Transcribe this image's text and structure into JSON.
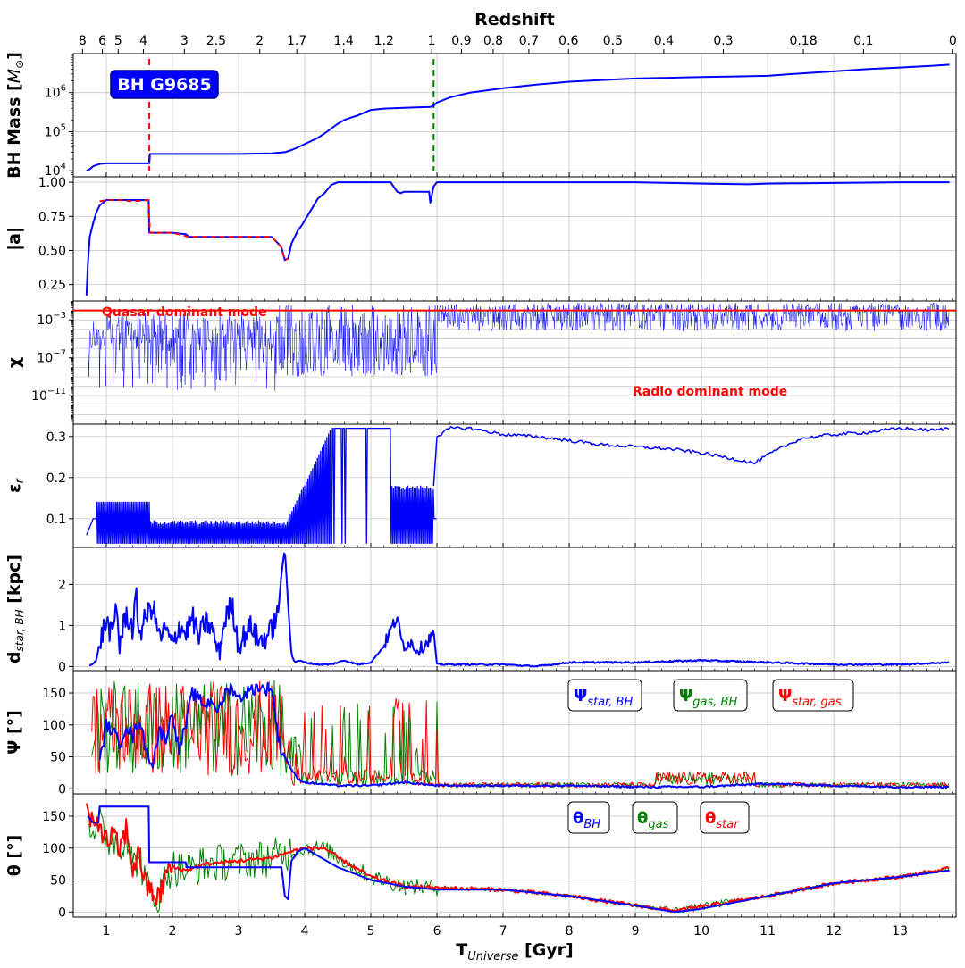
{
  "figure": {
    "top_title": "Redshift",
    "x_title": "T",
    "x_title_sub": "Universe",
    "x_title_unit": " [Gyr]",
    "colors": {
      "blue": "#0000ff",
      "red": "#ff0000",
      "green": "#008000",
      "dark_green": "#008000",
      "black": "#000000"
    }
  },
  "chart_data": [
    {
      "type": "line",
      "ylabel": "BH Mass [",
      "ylabel_math": "M",
      "ylabel_sub": "⊙",
      "ylabel_end": "]",
      "yscale": "log",
      "ylim": [
        7000,
        10000000
      ],
      "ytick_values": [
        10000,
        100000,
        1000000
      ],
      "ytick_bases": [
        "10",
        "10",
        "10"
      ],
      "ytick_exps": [
        "4",
        "5",
        "6"
      ],
      "annotation_box": "BH G9685",
      "vlines": [
        {
          "x": 1.65,
          "color": "#ff0000",
          "style": "dashed"
        },
        {
          "x": 5.95,
          "color": "#008000",
          "style": "dashed"
        }
      ],
      "series": [
        {
          "color": "#0000ff",
          "x": [
            0.7,
            0.75,
            0.8,
            0.9,
            1.0,
            1.2,
            1.4,
            1.65,
            1.66,
            2.0,
            2.5,
            3.0,
            3.5,
            3.7,
            3.8,
            3.9,
            4.0,
            4.1,
            4.2,
            4.3,
            4.4,
            4.5,
            4.6,
            4.7,
            4.8,
            5.0,
            5.2,
            5.5,
            5.9,
            5.95,
            6.0,
            6.2,
            6.5,
            7.0,
            7.5,
            8.0,
            8.5,
            9.0,
            9.5,
            10.0,
            10.5,
            11.0,
            11.5,
            12.0,
            12.5,
            13.0,
            13.5,
            13.75
          ],
          "y": [
            10000,
            11000,
            13000,
            15000,
            15500,
            15500,
            15500,
            15500,
            27000,
            27000,
            27000,
            27000,
            28000,
            30000,
            34000,
            40000,
            48000,
            58000,
            70000,
            90000,
            120000,
            160000,
            200000,
            230000,
            260000,
            360000,
            390000,
            410000,
            430000,
            460000,
            560000,
            760000,
            1000000,
            1300000,
            1600000,
            1900000,
            2100000,
            2300000,
            2400000,
            2500000,
            2600000,
            2700000,
            3100000,
            3500000,
            4000000,
            4400000,
            4900000,
            5200000
          ]
        }
      ]
    },
    {
      "type": "line",
      "ylabel": "|a|",
      "ylim": [
        0.13,
        1.04
      ],
      "yticks": [
        0.25,
        0.5,
        0.75,
        1.0
      ],
      "ytick_labels": [
        "0.25",
        "0.50",
        "0.75",
        "1.00"
      ],
      "series": [
        {
          "color": "#0000ff",
          "x": [
            0.7,
            0.72,
            0.75,
            0.78,
            0.8,
            0.85,
            0.9,
            1.0,
            1.2,
            1.4,
            1.64,
            1.65,
            2.0,
            2.2,
            2.25,
            3.0,
            3.5,
            3.6,
            3.65,
            3.7,
            3.75,
            3.8,
            3.85,
            3.9,
            3.95,
            4.0,
            4.1,
            4.2,
            4.3,
            4.4,
            4.5,
            4.6,
            4.7,
            5.0,
            5.3,
            5.4,
            5.45,
            5.5,
            5.8,
            5.88,
            5.9,
            5.95,
            6.0,
            6.5,
            7.0,
            8.0,
            9.0,
            10.0,
            10.7,
            11.0,
            12.0,
            13.0,
            13.75
          ],
          "y": [
            0.17,
            0.4,
            0.6,
            0.66,
            0.7,
            0.78,
            0.83,
            0.87,
            0.87,
            0.87,
            0.87,
            0.63,
            0.63,
            0.62,
            0.6,
            0.6,
            0.6,
            0.55,
            0.52,
            0.43,
            0.44,
            0.55,
            0.6,
            0.65,
            0.68,
            0.72,
            0.8,
            0.88,
            0.92,
            0.98,
            1.0,
            1.0,
            1.0,
            1.0,
            1.0,
            0.93,
            0.92,
            0.93,
            0.93,
            0.93,
            0.85,
            0.97,
            1.0,
            1.0,
            1.0,
            1.0,
            1.0,
            0.99,
            0.985,
            0.99,
            0.995,
            1.0,
            1.0
          ]
        },
        {
          "color": "#ff0000",
          "style": "dashed",
          "x": [
            0.9,
            1.0,
            1.2,
            1.4,
            1.64,
            1.66,
            2.0,
            2.25,
            3.0,
            3.5,
            3.6,
            3.65,
            3.7,
            3.75
          ],
          "y": [
            0.86,
            0.87,
            0.87,
            0.86,
            0.87,
            0.63,
            0.63,
            0.6,
            0.6,
            0.6,
            0.55,
            0.52,
            0.43,
            0.44
          ]
        }
      ]
    },
    {
      "type": "line",
      "ylabel": "χ",
      "yscale": "log",
      "ylim": [
        1e-14,
        0.1
      ],
      "ytick_values": [
        0.001,
        1e-07,
        1e-11
      ],
      "ytick_bases": [
        "10",
        "10",
        "10"
      ],
      "ytick_exps": [
        "−3",
        "−7",
        "−11"
      ],
      "threshold": {
        "y": 0.01,
        "color": "#ff0000"
      },
      "annotations": [
        "Quasar dominant mode",
        "Radio dominant mode"
      ],
      "series": [
        {
          "color": "#0000ff",
          "linewidth": 0.5,
          "x_range": [
            0.7,
            13.75
          ],
          "note": "noisy spiky accretion ratio"
        }
      ]
    },
    {
      "type": "line",
      "ylabel": "ε",
      "ylabel_sub": "r",
      "ylim": [
        0.03,
        0.33
      ],
      "yticks": [
        0.1,
        0.2,
        0.3
      ],
      "ytick_labels": [
        "0.1",
        "0.2",
        "0.3"
      ],
      "series": [
        {
          "color": "#0000ff",
          "x": [
            6.0,
            6.2,
            6.5,
            7.0,
            7.5,
            8.0,
            8.5,
            9.0,
            9.5,
            10.0,
            10.5,
            10.8,
            11.0,
            11.5,
            12.0,
            12.5,
            13.0,
            13.5,
            13.75
          ],
          "y": [
            0.3,
            0.32,
            0.32,
            0.305,
            0.3,
            0.29,
            0.28,
            0.275,
            0.27,
            0.26,
            0.245,
            0.235,
            0.255,
            0.295,
            0.305,
            0.31,
            0.32,
            0.315,
            0.32
          ]
        }
      ]
    },
    {
      "type": "line",
      "ylabel": "d",
      "ylabel_sub": "star, BH",
      "ylabel_end": " [kpc]",
      "ylim": [
        -0.1,
        2.9
      ],
      "yticks": [
        0,
        1,
        2
      ],
      "ytick_labels": [
        "0",
        "1",
        "2"
      ],
      "series": [
        {
          "color": "#0000ff",
          "x": [
            0.75,
            0.85,
            0.9,
            1.0,
            1.1,
            1.15,
            1.2,
            1.3,
            1.4,
            1.45,
            1.5,
            1.6,
            1.7,
            1.8,
            1.9,
            2.0,
            2.1,
            2.2,
            2.3,
            2.4,
            2.5,
            2.6,
            2.7,
            2.8,
            2.9,
            3.0,
            3.1,
            3.2,
            3.3,
            3.4,
            3.5,
            3.6,
            3.65,
            3.7,
            3.75,
            3.8,
            3.85,
            3.9,
            4.0,
            4.2,
            4.4,
            4.6,
            4.8,
            5.0,
            5.2,
            5.3,
            5.4,
            5.45,
            5.5,
            5.6,
            5.7,
            5.8,
            5.9,
            5.95,
            6.0,
            6.5,
            7.0,
            7.5,
            8.0,
            9.0,
            10.0,
            11.0,
            12.0,
            13.0,
            13.75
          ],
          "y": [
            0.02,
            0.15,
            0.6,
            1.1,
            0.7,
            1.6,
            0.5,
            1.3,
            0.9,
            1.7,
            0.8,
            1.2,
            1.5,
            0.7,
            0.9,
            0.5,
            1.0,
            0.8,
            1.2,
            0.7,
            1.1,
            0.9,
            0.3,
            1.2,
            1.5,
            0.5,
            0.8,
            1.0,
            0.6,
            0.7,
            0.9,
            1.3,
            2.3,
            2.85,
            1.5,
            0.3,
            0.1,
            0.15,
            0.1,
            0.05,
            0.05,
            0.15,
            0.05,
            0.1,
            0.5,
            0.9,
            1.2,
            0.7,
            0.5,
            0.6,
            0.4,
            0.5,
            0.7,
            0.85,
            0.05,
            0.05,
            0.05,
            0.0,
            0.1,
            0.1,
            0.15,
            0.1,
            0.05,
            0.05,
            0.1
          ]
        }
      ]
    },
    {
      "type": "line",
      "ylabel": "Ψ [°]",
      "ylim": [
        -8,
        185
      ],
      "yticks": [
        0,
        50,
        100,
        150
      ],
      "ytick_labels": [
        "0",
        "50",
        "100",
        "150"
      ],
      "legend": [
        {
          "label": "Ψ",
          "sub": "star, BH",
          "color": "#0000ff"
        },
        {
          "label": "Ψ",
          "sub": "gas, BH",
          "color": "#008000"
        },
        {
          "label": "Ψ",
          "sub": "star, gas",
          "color": "#ff0000"
        }
      ],
      "series": [
        {
          "name": "Ψstar,BH",
          "color": "#0000ff",
          "x": [
            0.9,
            1.0,
            1.1,
            1.2,
            1.3,
            1.4,
            1.5,
            1.6,
            1.7,
            1.8,
            1.9,
            2.0,
            2.1,
            2.2,
            2.3,
            2.4,
            2.5,
            2.6,
            2.7,
            2.8,
            2.9,
            3.0,
            3.1,
            3.2,
            3.3,
            3.4,
            3.5,
            3.6,
            3.65,
            3.7,
            3.8,
            3.9,
            4.0,
            4.5,
            5.0,
            5.5,
            6.0,
            7.0,
            8.0,
            9.0,
            10.0,
            11.0,
            12.0,
            13.0,
            13.75
          ],
          "y": [
            40,
            100,
            90,
            70,
            100,
            80,
            110,
            60,
            40,
            90,
            80,
            120,
            60,
            100,
            150,
            140,
            130,
            140,
            120,
            150,
            160,
            140,
            150,
            155,
            160,
            155,
            160,
            80,
            60,
            50,
            30,
            15,
            10,
            5,
            5,
            10,
            5,
            5,
            5,
            3,
            3,
            8,
            5,
            3,
            3
          ]
        },
        {
          "name": "Ψgas,BH",
          "color": "#008000",
          "linewidth": 1,
          "x_range": [
            0.7,
            13.75
          ],
          "note": "noisy"
        },
        {
          "name": "Ψstar,gas",
          "color": "#ff0000",
          "linewidth": 1,
          "x_range": [
            0.7,
            13.75
          ],
          "note": "noisy"
        }
      ]
    },
    {
      "type": "line",
      "ylabel": "θ [°]",
      "ylim": [
        -8,
        185
      ],
      "yticks": [
        0,
        50,
        100,
        150
      ],
      "ytick_labels": [
        "0",
        "50",
        "100",
        "150"
      ],
      "legend": [
        {
          "label": "θ",
          "sub": "BH",
          "color": "#0000ff"
        },
        {
          "label": "θ",
          "sub": "gas",
          "color": "#008000"
        },
        {
          "label": "θ",
          "sub": "star",
          "color": "#ff0000"
        }
      ],
      "series": [
        {
          "name": "θBH",
          "color": "#0000ff",
          "x": [
            0.72,
            0.8,
            0.88,
            0.9,
            1.64,
            1.65,
            2.2,
            2.21,
            3.65,
            3.7,
            3.75,
            3.8,
            3.9,
            4.0,
            4.5,
            5.0,
            5.5,
            6.0,
            7.0,
            8.0,
            9.0,
            9.6,
            10.0,
            11.0,
            12.0,
            13.0,
            13.75
          ],
          "y": [
            150,
            140,
            140,
            165,
            165,
            78,
            78,
            70,
            70,
            25,
            20,
            80,
            95,
            100,
            70,
            50,
            40,
            35,
            35,
            25,
            10,
            0,
            5,
            25,
            45,
            55,
            65
          ]
        },
        {
          "name": "θstar",
          "color": "#ff0000",
          "x": [
            0.7,
            0.8,
            0.9,
            1.0,
            1.1,
            1.2,
            1.3,
            1.4,
            1.5,
            1.6,
            1.7,
            1.8,
            1.9,
            2.0,
            2.2,
            2.5,
            3.0,
            3.5,
            3.8,
            4.0,
            4.3,
            4.5,
            5.0,
            5.5,
            6.0,
            7.0,
            8.0,
            9.0,
            9.6,
            10.0,
            11.0,
            12.0,
            13.0,
            13.75
          ],
          "y": [
            160,
            130,
            140,
            110,
            120,
            95,
            130,
            70,
            90,
            40,
            30,
            20,
            60,
            70,
            65,
            75,
            80,
            85,
            95,
            100,
            100,
            85,
            55,
            40,
            38,
            35,
            25,
            10,
            2,
            8,
            25,
            45,
            55,
            68
          ]
        },
        {
          "name": "θgas",
          "color": "#008000",
          "linewidth": 1,
          "x_range": [
            0.7,
            13.75
          ],
          "note": "noisy"
        }
      ]
    }
  ],
  "axes": {
    "xlim": [
      0.5,
      13.85
    ],
    "xticks": [
      1,
      2,
      3,
      4,
      5,
      6,
      7,
      8,
      9,
      10,
      11,
      12,
      13
    ],
    "xtick_labels": [
      "1",
      "2",
      "3",
      "4",
      "5",
      "6",
      "7",
      "8",
      "9",
      "10",
      "11",
      "12",
      "13"
    ],
    "redshift_ticks": [
      {
        "label": "8",
        "t": 0.64
      },
      {
        "label": "6",
        "t": 0.94
      },
      {
        "label": "5",
        "t": 1.18
      },
      {
        "label": "4",
        "t": 1.56
      },
      {
        "label": "3",
        "t": 2.18
      },
      {
        "label": "2.5",
        "t": 2.66
      },
      {
        "label": "2",
        "t": 3.32
      },
      {
        "label": "1.7",
        "t": 3.88
      },
      {
        "label": "1.4",
        "t": 4.59
      },
      {
        "label": "1.2",
        "t": 5.2
      },
      {
        "label": "1",
        "t": 5.92
      },
      {
        "label": "0.9",
        "t": 6.37
      },
      {
        "label": "0.8",
        "t": 6.85
      },
      {
        "label": "0.7",
        "t": 7.39
      },
      {
        "label": "0.6",
        "t": 7.99
      },
      {
        "label": "0.5",
        "t": 8.66
      },
      {
        "label": "0.4",
        "t": 9.43
      },
      {
        "label": "0.3",
        "t": 10.33
      },
      {
        "label": "0.18",
        "t": 11.54
      },
      {
        "label": "0.1",
        "t": 12.45
      },
      {
        "label": "0",
        "t": 13.8
      }
    ]
  }
}
